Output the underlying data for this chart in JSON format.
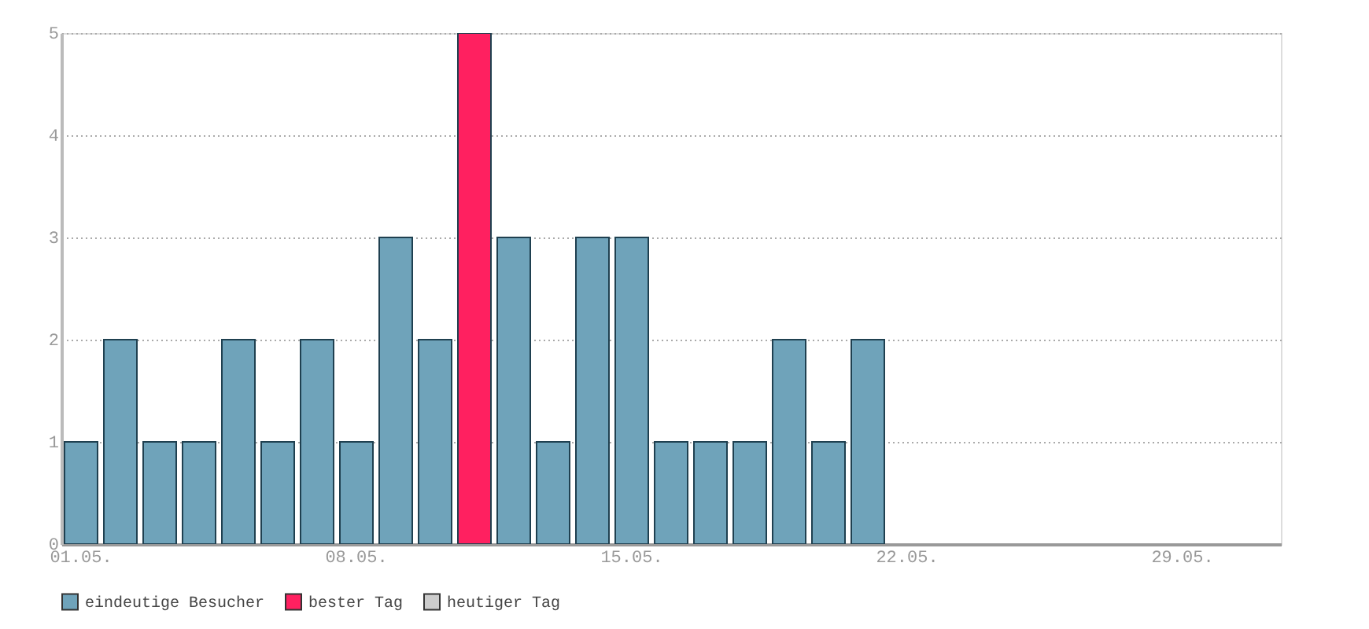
{
  "chart_data": {
    "type": "bar",
    "categories": [
      "01.05.",
      null,
      null,
      null,
      null,
      null,
      null,
      "08.05.",
      null,
      null,
      null,
      null,
      null,
      null,
      "15.05.",
      null,
      null,
      null,
      null,
      null,
      null,
      "22.05.",
      null,
      null,
      null,
      null,
      null,
      null,
      "29.05.",
      null,
      null
    ],
    "series": [
      {
        "name": "eindeutige Besucher",
        "color": "#6fa3ba",
        "values": [
          1,
          2,
          1,
          1,
          2,
          1,
          2,
          1,
          3,
          2,
          null,
          3,
          1,
          3,
          3,
          1,
          1,
          1,
          2,
          1,
          2,
          null,
          null,
          null,
          null,
          null,
          null,
          null,
          null,
          null,
          null
        ]
      },
      {
        "name": "bester Tag",
        "color": "#ff2060",
        "values": [
          null,
          null,
          null,
          null,
          null,
          null,
          null,
          null,
          null,
          null,
          5,
          null,
          null,
          null,
          null,
          null,
          null,
          null,
          null,
          null,
          null,
          null,
          null,
          null,
          null,
          null,
          null,
          null,
          null,
          null,
          null
        ]
      },
      {
        "name": "heutiger Tag",
        "color": "#cccccc",
        "values": [
          null,
          null,
          null,
          null,
          null,
          null,
          null,
          null,
          null,
          null,
          null,
          null,
          null,
          null,
          null,
          null,
          null,
          null,
          null,
          null,
          null,
          null,
          null,
          null,
          null,
          null,
          null,
          null,
          null,
          null,
          null
        ]
      }
    ],
    "ylim": [
      0,
      5
    ],
    "yticks": [
      0,
      1,
      2,
      3,
      4,
      5
    ],
    "grid": "y",
    "legend": "bottom"
  }
}
